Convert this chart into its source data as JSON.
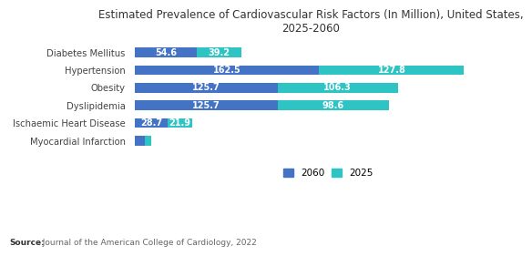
{
  "title": "Estimated Prevalence of Cardiovascular Risk Factors (In Million), United States,\n2025-2060",
  "categories": [
    "Myocardial Infarction",
    "Ischaemic Heart Disease",
    "Dyslipidemia",
    "Obesity",
    "Hypertension",
    "Diabetes Mellitus"
  ],
  "values_2060": [
    8.5,
    28.7,
    125.7,
    125.7,
    162.5,
    54.6
  ],
  "values_2025": [
    6.0,
    21.9,
    98.6,
    106.3,
    127.8,
    39.2
  ],
  "labels_2060": [
    "",
    "28.7",
    "125.7",
    "125.7",
    "162.5",
    "54.6"
  ],
  "labels_2025": [
    "",
    "21.9",
    "98.6",
    "106.3",
    "127.8",
    "39.2"
  ],
  "color_2060": "#4472c4",
  "color_2025": "#2ec4c4",
  "source_bold": "Source:",
  "source_rest": "  Journal of the American College of Cardiology, 2022",
  "background_color": "#ffffff",
  "xlim": [
    0,
    310
  ]
}
